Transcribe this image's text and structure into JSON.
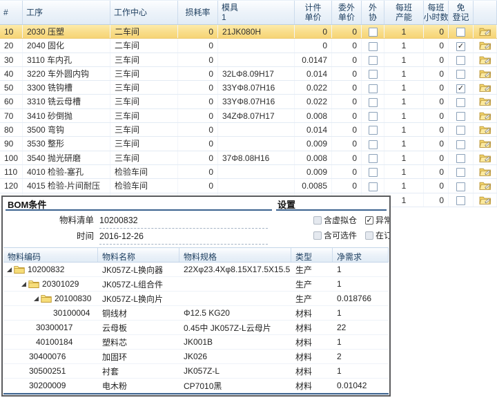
{
  "colors": {
    "selected_row": "#f8dc87",
    "section_underline": "#3a618e",
    "header_text": "#1d3e5f",
    "folder_icon": "#f6dd7a"
  },
  "icons": {
    "check_glyph": "✓",
    "tree_arrow": "tree-expanded-arrow",
    "tree_folder": "folder-icon",
    "row_action": "edit-folder-icon"
  },
  "process_grid": {
    "columns": [
      {
        "key": "num",
        "label": [
          "#"
        ],
        "width": 33,
        "align": "left",
        "type": "text"
      },
      {
        "key": "process",
        "label": [
          "工序"
        ],
        "width": 127,
        "align": "left",
        "type": "text"
      },
      {
        "key": "center",
        "label": [
          "工作中心"
        ],
        "width": 98,
        "align": "left",
        "type": "text"
      },
      {
        "key": "loss",
        "label": [
          "损耗率"
        ],
        "width": 58,
        "align": "right",
        "type": "text",
        "hcenter": true
      },
      {
        "key": "mold",
        "label": [
          "模具",
          "1"
        ],
        "width": 111,
        "align": "left",
        "type": "text"
      },
      {
        "key": "piece",
        "label": [
          "计件",
          "单价"
        ],
        "width": 54,
        "align": "right",
        "type": "text",
        "hcenter": true
      },
      {
        "key": "outsource",
        "label": [
          "委外",
          "单价"
        ],
        "width": 43,
        "align": "right",
        "type": "text",
        "hcenter": true
      },
      {
        "key": "subcontract",
        "label": [
          "外",
          "协"
        ],
        "width": 33,
        "align": "center",
        "type": "checkbox",
        "hcenter": true
      },
      {
        "key": "capacity",
        "label": [
          "每班",
          "产能"
        ],
        "width": 57,
        "align": "center",
        "type": "text",
        "hcenter": true
      },
      {
        "key": "hours",
        "label": [
          "每班",
          "小时数"
        ],
        "width": 36,
        "align": "right",
        "type": "text",
        "hcenter": true
      },
      {
        "key": "exempt",
        "label": [
          "免",
          "登记"
        ],
        "width": 36,
        "align": "center",
        "type": "checkbox",
        "hcenter": true
      },
      {
        "key": "edit",
        "label": [
          ""
        ],
        "width": 34,
        "align": "center",
        "type": "icon",
        "hcenter": true
      }
    ],
    "rows": [
      {
        "num": "10",
        "process": "2030 压塑",
        "center": "二车间",
        "loss": "0",
        "mold": "21JK080H",
        "piece": "0",
        "outsource": "0",
        "subcontract": false,
        "capacity": "1",
        "hours": "0",
        "exempt": false,
        "selected": true
      },
      {
        "num": "20",
        "process": "2040 固化",
        "center": "二车间",
        "loss": "0",
        "mold": "",
        "piece": "0",
        "outsource": "0",
        "subcontract": false,
        "capacity": "1",
        "hours": "0",
        "exempt": true
      },
      {
        "num": "30",
        "process": "3110 车内孔",
        "center": "三车间",
        "loss": "0",
        "mold": "",
        "piece": "0.0147",
        "outsource": "0",
        "subcontract": false,
        "capacity": "1",
        "hours": "0",
        "exempt": false
      },
      {
        "num": "40",
        "process": "3220 车外圆内钩",
        "center": "三车间",
        "loss": "0",
        "mold": "32LΦ8.09H17",
        "piece": "0.014",
        "outsource": "0",
        "subcontract": false,
        "capacity": "1",
        "hours": "0",
        "exempt": false
      },
      {
        "num": "50",
        "process": "3300 铣钩槽",
        "center": "三车间",
        "loss": "0",
        "mold": "33YΦ8.07H16",
        "piece": "0.022",
        "outsource": "0",
        "subcontract": false,
        "capacity": "1",
        "hours": "0",
        "exempt": true
      },
      {
        "num": "60",
        "process": "3310 铣云母槽",
        "center": "三车间",
        "loss": "0",
        "mold": "33YΦ8.07H16",
        "piece": "0.022",
        "outsource": "0",
        "subcontract": false,
        "capacity": "1",
        "hours": "0",
        "exempt": false
      },
      {
        "num": "70",
        "process": "3410 砂倒抛",
        "center": "三车间",
        "loss": "0",
        "mold": "34ZΦ8.07H17",
        "piece": "0.008",
        "outsource": "0",
        "subcontract": false,
        "capacity": "1",
        "hours": "0",
        "exempt": false
      },
      {
        "num": "80",
        "process": "3500 弯钩",
        "center": "三车间",
        "loss": "0",
        "mold": "",
        "piece": "0.014",
        "outsource": "0",
        "subcontract": false,
        "capacity": "1",
        "hours": "0",
        "exempt": false
      },
      {
        "num": "90",
        "process": "3530 整形",
        "center": "三车间",
        "loss": "0",
        "mold": "",
        "piece": "0.009",
        "outsource": "0",
        "subcontract": false,
        "capacity": "1",
        "hours": "0",
        "exempt": false
      },
      {
        "num": "100",
        "process": "3540 抛光研磨",
        "center": "三车间",
        "loss": "0",
        "mold": "37Φ8.08H16",
        "piece": "0.008",
        "outsource": "0",
        "subcontract": false,
        "capacity": "1",
        "hours": "0",
        "exempt": false
      },
      {
        "num": "110",
        "process": "4010 检验-塞孔",
        "center": "检验车间",
        "loss": "0",
        "mold": "",
        "piece": "0.009",
        "outsource": "0",
        "subcontract": false,
        "capacity": "1",
        "hours": "0",
        "exempt": false
      },
      {
        "num": "120",
        "process": "4015 检验-片间耐压",
        "center": "检验车间",
        "loss": "0",
        "mold": "",
        "piece": "0.0085",
        "outsource": "0",
        "subcontract": false,
        "capacity": "1",
        "hours": "0",
        "exempt": false
      },
      {
        "num": "",
        "process": "",
        "center": "",
        "loss": "",
        "mold": "",
        "piece": "",
        "outsource": "",
        "subcontract": null,
        "capacity": "1",
        "hours": "0",
        "exempt": false,
        "partial": true
      }
    ]
  },
  "bom_panel": {
    "title": "BOM条件",
    "settings_title": "设置",
    "fields": [
      {
        "label": "物料清单",
        "value": "10200832"
      },
      {
        "label": "时间",
        "value": "2016-12-26"
      }
    ],
    "checkboxes": [
      {
        "label": "含虚拟仓",
        "checked": false
      },
      {
        "label": "异常",
        "checked": true
      },
      {
        "label": "含可选件",
        "checked": false
      },
      {
        "label": "在订",
        "checked": false
      }
    ],
    "table": {
      "columns": [
        {
          "key": "code",
          "label": "物料编码",
          "width": 137
        },
        {
          "key": "name",
          "label": "物料名称",
          "width": 118
        },
        {
          "key": "spec",
          "label": "物料规格",
          "width": 162
        },
        {
          "key": "type",
          "label": "类型",
          "width": 60
        },
        {
          "key": "qty",
          "label": "净需求",
          "width": 81
        }
      ],
      "rows": [
        {
          "code": "10200832",
          "name": "JK057Z-L换向器",
          "spec": "22Xφ23.4Xφ8.15X17.5X15.5",
          "type": "生产",
          "qty": "1",
          "level": 0,
          "folder": true
        },
        {
          "code": "20301029",
          "name": "JK057Z-L组合件",
          "spec": "",
          "type": "生产",
          "qty": "1",
          "level": 1,
          "folder": true
        },
        {
          "code": "20100830",
          "name": "JK057Z-L换向片",
          "spec": "",
          "type": "生产",
          "qty": "0.018766",
          "level": 2,
          "folder": true
        },
        {
          "code": "30100004",
          "name": "铜线材",
          "spec": "Φ12.5 KG20",
          "type": "材料",
          "qty": "1",
          "level": 3,
          "folder": false
        },
        {
          "code": "30300017",
          "name": "云母板",
          "spec": "0.45中 JK057Z-L云母片",
          "type": "材料",
          "qty": "22",
          "level": 2,
          "folder": false
        },
        {
          "code": "40100184",
          "name": "塑料芯",
          "spec": "JK001B",
          "type": "材料",
          "qty": "1",
          "level": 2,
          "folder": false
        },
        {
          "code": "30400076",
          "name": "加固环",
          "spec": "JK026",
          "type": "材料",
          "qty": "2",
          "level": 1,
          "folder": false
        },
        {
          "code": "30500251",
          "name": "衬套",
          "spec": "JK057Z-L",
          "type": "材料",
          "qty": "1",
          "level": 1,
          "folder": false
        },
        {
          "code": "30200009",
          "name": "电木粉",
          "spec": "CP7010黑",
          "type": "材料",
          "qty": "0.01042",
          "level": 1,
          "folder": false
        }
      ]
    }
  }
}
